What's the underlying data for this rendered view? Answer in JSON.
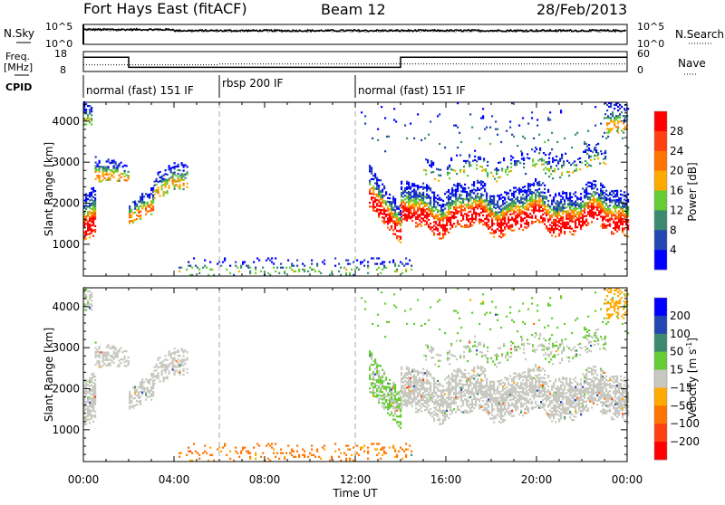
{
  "header": {
    "station": "Fort Hays East (fitACF)",
    "beam": "Beam 12",
    "date": "28/Feb/2013"
  },
  "noise_panel": {
    "left_label": "N.Sky",
    "right_label": "N.Search",
    "left_ticks": [
      "10^5",
      "10^0"
    ],
    "right_ticks": [
      "10^5",
      "10^0"
    ],
    "sky_log_level": 3.8,
    "search_log_level": 3.6
  },
  "freq_panel": {
    "left_label": "Freq.",
    "left_unit": "[MHz]",
    "right_label": "Nave",
    "left_ticks": [
      "18",
      "8"
    ],
    "right_ticks": [
      "60",
      "0"
    ],
    "freq_steps": [
      {
        "t0": 0,
        "t1": 2,
        "mhz": 15.5
      },
      {
        "t0": 2,
        "t1": 14,
        "mhz": 10.2
      },
      {
        "t0": 14,
        "t1": 24,
        "mhz": 15.5
      }
    ],
    "nave_steps": [
      {
        "t0": 0,
        "t1": 6,
        "n": 19
      },
      {
        "t0": 6,
        "t1": 24,
        "n": 22
      }
    ]
  },
  "cpid": {
    "label": "CPID",
    "segments": [
      {
        "t0": 0,
        "name": "normal (fast) 151 IF"
      },
      {
        "t0": 6,
        "name": "rbsp 200 IF"
      },
      {
        "t0": 12,
        "name": "normal (fast) 151 IF"
      }
    ]
  },
  "chart_data": {
    "type": "heatmap",
    "xlabel": "Time UT",
    "ylabel": "Slant Range [km]",
    "xlim": [
      0,
      24
    ],
    "ylim": [
      225,
      4460
    ],
    "x_ticks": [
      "00:00",
      "04:00",
      "08:00",
      "12:00",
      "16:00",
      "20:00",
      "00:00"
    ],
    "y_ticks": [
      "1000",
      "2000",
      "3000",
      "4000"
    ],
    "mode_change_times": [
      6,
      12
    ],
    "power_scale": {
      "label": "Power [dB]",
      "ticks": [
        "4",
        "8",
        "12",
        "16",
        "20",
        "24",
        "28"
      ],
      "colors": [
        "#0000ff",
        "#2346b4",
        "#3c8a6e",
        "#66cc33",
        "#ffaa00",
        "#ff7400",
        "#ff4010",
        "#ff0000"
      ],
      "range": [
        0,
        32
      ]
    },
    "velocity_scale": {
      "label": "Velocity [m s-1]",
      "unit_main": "Velocity [m s",
      "unit_sup": "-1",
      "unit_end": "]",
      "ticks": [
        "200",
        "100",
        "50",
        "15",
        "-15",
        "-50",
        "-100",
        "-200"
      ],
      "bounds": [
        200,
        100,
        50,
        15,
        -15,
        -50,
        -100,
        -200
      ],
      "colors": [
        "#0000ff",
        "#2346b4",
        "#3c8a6e",
        "#66cc33",
        "#c8c8c0",
        "#ffaa00",
        "#ff7400",
        "#ff4010",
        "#ff0000"
      ]
    },
    "echo_regions": [
      {
        "t0": 0.0,
        "t1": 0.5,
        "r0": [
          1100,
          2300
        ],
        "r1": [
          1200,
          2400
        ],
        "density": 0.8,
        "pmax": 30,
        "vmean": 0,
        "wobble": 0
      },
      {
        "t0": 0.0,
        "t1": 0.35,
        "r0": [
          3900,
          4450
        ],
        "r1": [
          3900,
          4450
        ],
        "density": 0.6,
        "pmax": 14,
        "vmean": 5,
        "wobble": 0
      },
      {
        "t0": 0.5,
        "t1": 2.0,
        "r0": [
          2450,
          3050
        ],
        "r1": [
          2550,
          3000
        ],
        "density": 0.55,
        "pmax": 19,
        "vmean": 0,
        "wobble": 60
      },
      {
        "t0": 2.0,
        "t1": 3.1,
        "r0": [
          1550,
          2100
        ],
        "r1": [
          1700,
          2350
        ],
        "density": 0.6,
        "pmax": 21,
        "vmean": 0,
        "wobble": 40
      },
      {
        "t0": 3.1,
        "t1": 4.6,
        "r0": [
          2000,
          2650
        ],
        "r1": [
          2450,
          3100
        ],
        "density": 0.5,
        "pmax": 17,
        "vmean": 0,
        "wobble": 80
      },
      {
        "t0": 4.2,
        "t1": 14.5,
        "r0": [
          230,
          650
        ],
        "r1": [
          230,
          650
        ],
        "density": 0.14,
        "pmax": 12,
        "vmean": -60,
        "wobble": 0
      },
      {
        "t0": 12.6,
        "t1": 14.0,
        "r0": [
          1900,
          2900
        ],
        "r1": [
          1000,
          1900
        ],
        "density": 0.7,
        "pmax": 31,
        "vmean": 20,
        "wobble": 0
      },
      {
        "t0": 14.0,
        "t1": 24.0,
        "r0": [
          1350,
          2400
        ],
        "r1": [
          1300,
          2350
        ],
        "density": 0.72,
        "pmax": 31,
        "vmean": 0,
        "wobble": 150
      },
      {
        "t0": 15.0,
        "t1": 23.0,
        "r0": [
          2550,
          3100
        ],
        "r1": [
          2750,
          3300
        ],
        "density": 0.22,
        "pmax": 13,
        "vmean": 10,
        "wobble": 120
      },
      {
        "t0": 12.0,
        "t1": 24.0,
        "r0": [
          3200,
          4450
        ],
        "r1": [
          3200,
          4450
        ],
        "density": 0.03,
        "pmax": 7,
        "vmean": 30,
        "wobble": 0
      },
      {
        "t0": 23.0,
        "t1": 24.0,
        "r0": [
          3700,
          4450
        ],
        "r1": [
          3700,
          4450
        ],
        "density": 0.4,
        "pmax": 17,
        "vmean": -30,
        "wobble": 0
      }
    ]
  }
}
